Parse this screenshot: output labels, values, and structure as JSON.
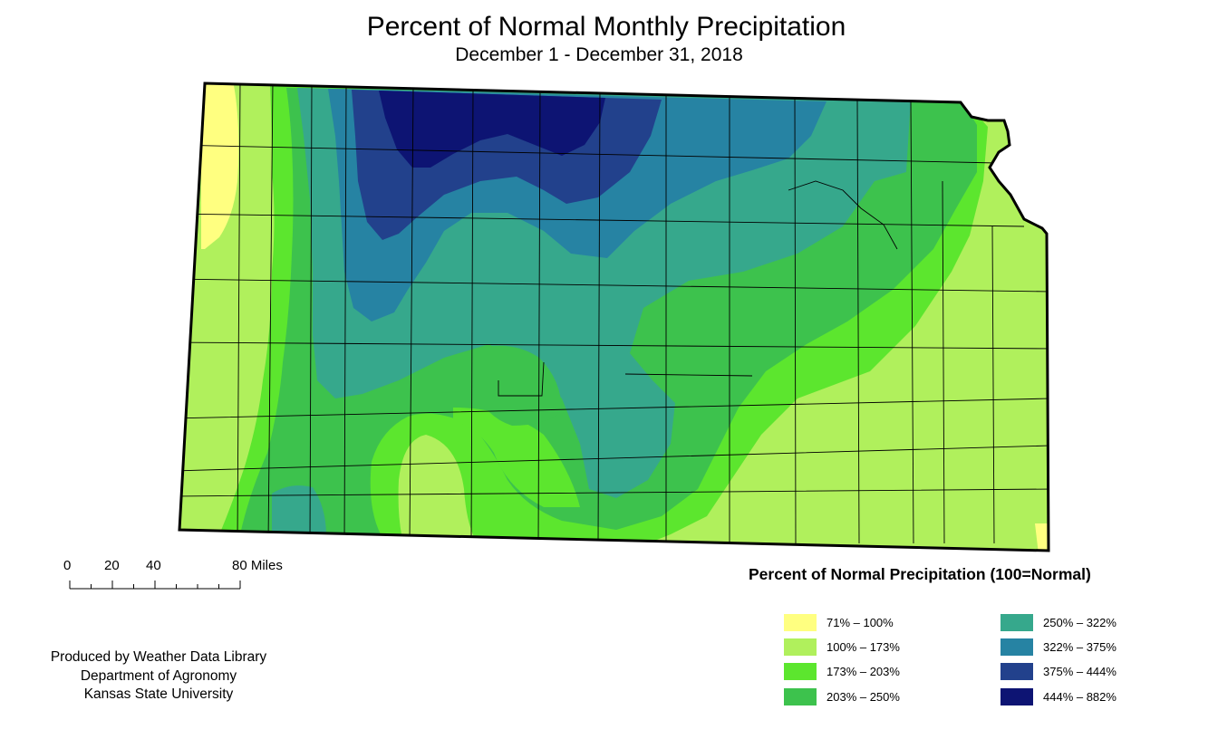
{
  "title": "Percent of Normal Monthly Precipitation",
  "subtitle": "December 1 - December 31, 2018",
  "scale_bar": {
    "labels": [
      "0",
      "20",
      "40",
      "80 Miles"
    ],
    "tick_miles": [
      0,
      10,
      20,
      30,
      40,
      50,
      60,
      70,
      80
    ]
  },
  "credits": [
    "Produced by Weather Data Library",
    "Department of Agronomy",
    "Kansas State University"
  ],
  "legend": {
    "title": "Percent of Normal Precipitation (100=Normal)",
    "items": [
      {
        "label": "71% – 100%",
        "color": "#ffff80"
      },
      {
        "label": "100% – 173%",
        "color": "#b0f05c"
      },
      {
        "label": "173% – 203%",
        "color": "#5ce62e"
      },
      {
        "label": "203% – 250%",
        "color": "#3dc24d"
      },
      {
        "label": "250% – 322%",
        "color": "#36a88c"
      },
      {
        "label": "322% – 375%",
        "color": "#2683a3"
      },
      {
        "label": "375% – 444%",
        "color": "#22418c"
      },
      {
        "label": "444% – 882%",
        "color": "#0d1473"
      }
    ]
  },
  "map": {
    "region": "Kansas",
    "boundary_color": "#000000",
    "county_line_color": "#000000"
  }
}
